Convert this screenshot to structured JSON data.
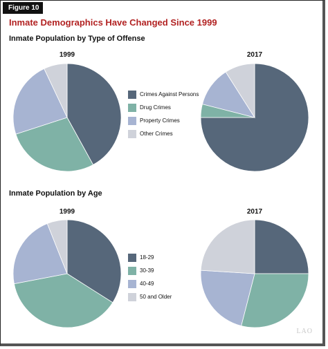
{
  "figure_label": "Figure 10",
  "title": "Inmate Demographics Have Changed Since 1999",
  "watermark": "LAO",
  "colors": {
    "series_1": "#56677a",
    "series_2": "#7fb2a6",
    "series_3": "#a7b4d2",
    "series_4": "#cfd2da"
  },
  "chart_data": [
    {
      "type": "pie",
      "section_title": "Inmate Population by Type of Offense",
      "title": "1999",
      "categories": [
        "Crimes Against Persons",
        "Drug Crimes",
        "Property Crimes",
        "Other Crimes"
      ],
      "values": [
        42,
        28,
        23,
        7
      ]
    },
    {
      "type": "pie",
      "section_title": "Inmate Population by Type of Offense",
      "title": "2017",
      "categories": [
        "Crimes Against Persons",
        "Drug Crimes",
        "Property Crimes",
        "Other Crimes"
      ],
      "values": [
        75,
        4,
        12,
        9
      ]
    },
    {
      "type": "pie",
      "section_title": "Inmate Population by Age",
      "title": "1999",
      "categories": [
        "18-29",
        "30-39",
        "40-49",
        "50 and Older"
      ],
      "values": [
        34,
        38,
        22,
        6
      ]
    },
    {
      "type": "pie",
      "section_title": "Inmate Population by Age",
      "title": "2017",
      "categories": [
        "18-29",
        "30-39",
        "40-49",
        "50 and Older"
      ],
      "values": [
        25,
        29,
        22,
        24
      ]
    }
  ],
  "legends": {
    "offense": [
      "Crimes Against Persons",
      "Drug Crimes",
      "Property Crimes",
      "Other Crimes"
    ],
    "age": [
      "18-29",
      "30-39",
      "40-49",
      "50 and Older"
    ]
  }
}
